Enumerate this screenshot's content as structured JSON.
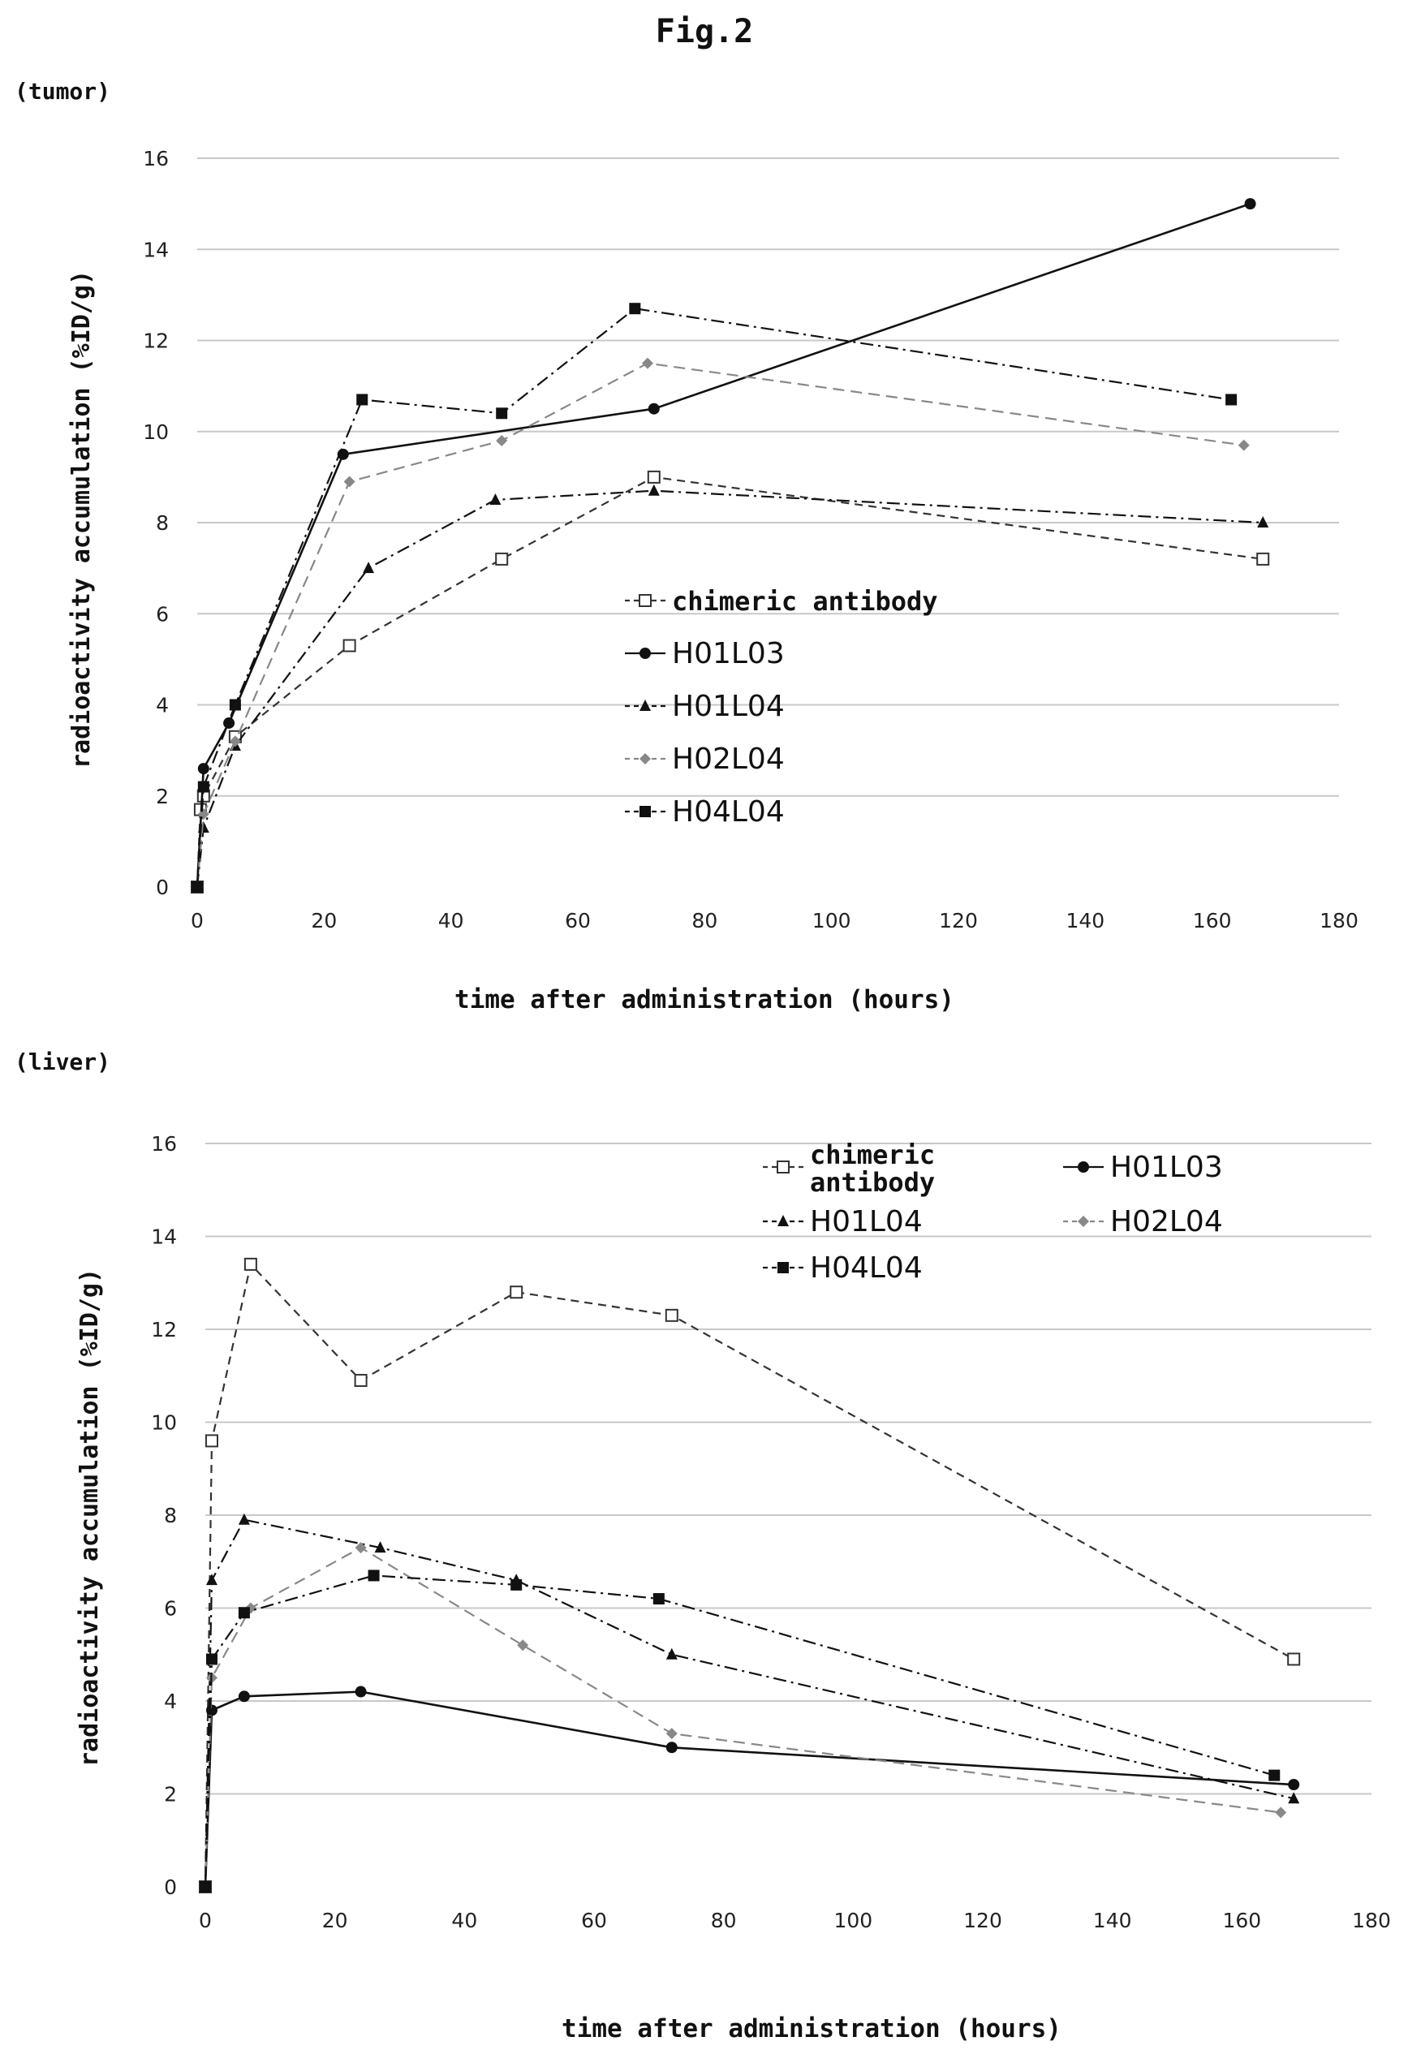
{
  "figure_title": "Fig.2",
  "chart_data": [
    {
      "type": "line",
      "panel_label": "(tumor)",
      "xlabel": "time after administration (hours)",
      "ylabel": "radioactivity accumulation (%ID/g)",
      "xlim": [
        0,
        180
      ],
      "ylim": [
        0,
        16
      ],
      "xticks": [
        0,
        20,
        40,
        60,
        80,
        100,
        120,
        140,
        160,
        180
      ],
      "yticks": [
        0,
        2,
        4,
        6,
        8,
        10,
        12,
        14,
        16
      ],
      "grid": "horizontal",
      "legend_position": "center-right",
      "series": [
        {
          "name": "chimeric antibody",
          "marker": "open-square",
          "dash": "dashed",
          "color": "#333333",
          "x": [
            0,
            0.5,
            1,
            6,
            24,
            48,
            72,
            168
          ],
          "y": [
            0,
            1.7,
            2.0,
            3.3,
            5.3,
            7.2,
            9.0,
            7.2
          ]
        },
        {
          "name": "H01L03",
          "marker": "circle",
          "dash": "solid",
          "color": "#111111",
          "x": [
            0,
            1,
            5,
            23,
            72,
            166
          ],
          "y": [
            0,
            2.6,
            3.6,
            9.5,
            10.5,
            15.0
          ]
        },
        {
          "name": "H01L04",
          "marker": "triangle",
          "dash": "dashdot",
          "color": "#111111",
          "x": [
            0,
            1,
            6,
            27,
            47,
            72,
            168
          ],
          "y": [
            0,
            1.3,
            3.1,
            7.0,
            8.5,
            8.7,
            8.0
          ]
        },
        {
          "name": "H02L04",
          "marker": "diamond",
          "dash": "dashed-light",
          "color": "#888888",
          "x": [
            0,
            1,
            6,
            24,
            48,
            71,
            165
          ],
          "y": [
            0,
            1.6,
            3.2,
            8.9,
            9.8,
            11.5,
            9.7
          ]
        },
        {
          "name": "H04L04",
          "marker": "square",
          "dash": "dashdot",
          "color": "#111111",
          "x": [
            0,
            1,
            6,
            26,
            48,
            69,
            163
          ],
          "y": [
            0,
            2.2,
            4.0,
            10.7,
            10.4,
            12.7,
            10.7
          ]
        }
      ]
    },
    {
      "type": "line",
      "panel_label": "(liver)",
      "xlabel": "time after administration (hours)",
      "ylabel": "radioactivity accumulation (%ID/g)",
      "xlim": [
        0,
        180
      ],
      "ylim": [
        0,
        16
      ],
      "xticks": [
        0,
        20,
        40,
        60,
        80,
        100,
        120,
        140,
        160,
        180
      ],
      "yticks": [
        0,
        2,
        4,
        6,
        8,
        10,
        12,
        14,
        16
      ],
      "grid": "horizontal",
      "legend_position": "top-right",
      "series": [
        {
          "name": "chimeric antibody",
          "marker": "open-square",
          "dash": "dashed",
          "color": "#333333",
          "x": [
            0,
            1,
            7,
            24,
            48,
            72,
            168
          ],
          "y": [
            0,
            9.6,
            13.4,
            10.9,
            12.8,
            12.3,
            4.9
          ]
        },
        {
          "name": "H01L03",
          "marker": "circle",
          "dash": "solid",
          "color": "#111111",
          "x": [
            0,
            1,
            6,
            24,
            72,
            168
          ],
          "y": [
            0,
            3.8,
            4.1,
            4.2,
            3.0,
            2.2
          ]
        },
        {
          "name": "H01L04",
          "marker": "triangle",
          "dash": "dashdot",
          "color": "#111111",
          "x": [
            0,
            1,
            6,
            27,
            48,
            72,
            168
          ],
          "y": [
            0,
            6.6,
            7.9,
            7.3,
            6.6,
            5.0,
            1.9
          ]
        },
        {
          "name": "H02L04",
          "marker": "diamond",
          "dash": "dashed-light",
          "color": "#888888",
          "x": [
            0,
            1,
            7,
            24,
            49,
            72,
            166
          ],
          "y": [
            0,
            4.5,
            6.0,
            7.3,
            5.2,
            3.3,
            1.6
          ]
        },
        {
          "name": "H04L04",
          "marker": "square",
          "dash": "dashdot",
          "color": "#111111",
          "x": [
            0,
            1,
            6,
            26,
            48,
            70,
            165
          ],
          "y": [
            0,
            4.9,
            5.9,
            6.7,
            6.5,
            6.2,
            2.4
          ]
        }
      ]
    }
  ]
}
